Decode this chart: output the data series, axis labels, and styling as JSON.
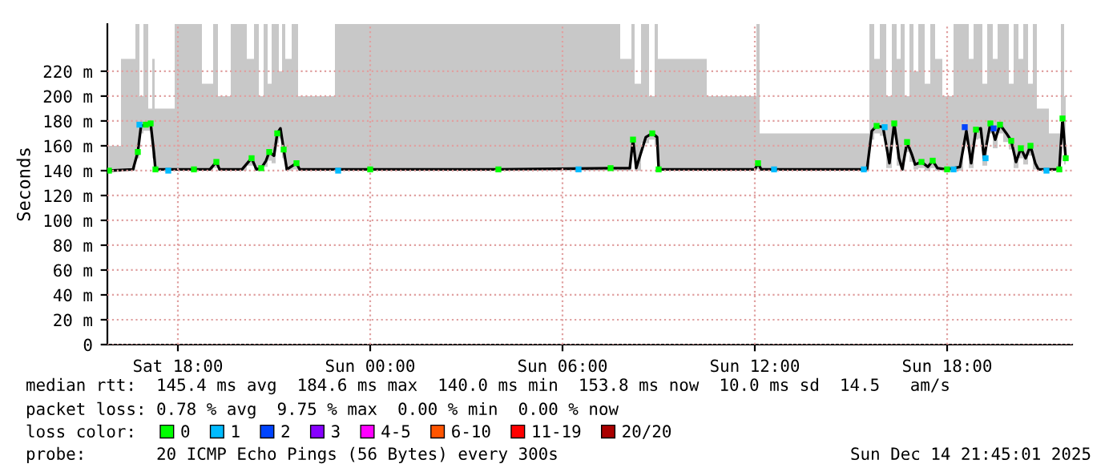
{
  "chart_data": {
    "type": "line",
    "ylabel": "Seconds",
    "xlim": [
      "2025-12-13T15:48",
      "2025-12-14T21:54"
    ],
    "xticks": [
      {
        "value": "2025-12-13T18:00",
        "label": "Sat 18:00"
      },
      {
        "value": "2025-12-14T00:00",
        "label": "Sun 00:00"
      },
      {
        "value": "2025-12-14T06:00",
        "label": "Sun 06:00"
      },
      {
        "value": "2025-12-14T12:00",
        "label": "Sun 12:00"
      },
      {
        "value": "2025-12-14T18:00",
        "label": "Sun 18:00"
      }
    ],
    "ylim": [
      0,
      258
    ],
    "yticks": [
      0,
      {
        "value": 20,
        "label": "20 m"
      },
      {
        "value": 40,
        "label": "40 m"
      },
      {
        "value": 60,
        "label": "60 m"
      },
      {
        "value": 80,
        "label": "80 m"
      },
      {
        "value": 100,
        "label": "100 m"
      },
      {
        "value": 120,
        "label": "120 m"
      },
      {
        "value": 140,
        "label": "140 m"
      },
      {
        "value": 160,
        "label": "160 m"
      },
      {
        "value": 180,
        "label": "180 m"
      },
      {
        "value": 200,
        "label": "200 m"
      },
      {
        "value": 220,
        "label": "220 m"
      }
    ],
    "grid": true,
    "legend": "bottom",
    "series": [
      {
        "color": "#000000",
        "x": [
          "2025-12-13T15:51",
          "2025-12-13T16:36",
          "2025-12-13T16:45",
          "2025-12-13T16:51",
          "2025-12-13T17:00",
          "2025-12-13T17:09",
          "2025-12-13T17:15",
          "2025-12-13T17:18",
          "2025-12-13T18:30",
          "2025-12-13T19:00",
          "2025-12-13T19:12",
          "2025-12-13T19:18",
          "2025-12-13T20:00",
          "2025-12-13T20:18",
          "2025-12-13T20:27",
          "2025-12-13T20:36",
          "2025-12-13T20:45",
          "2025-12-13T20:51",
          "2025-12-13T21:00",
          "2025-12-13T21:06",
          "2025-12-13T21:12",
          "2025-12-13T21:18",
          "2025-12-13T21:24",
          "2025-12-13T21:42",
          "2025-12-13T21:48",
          "2025-12-14T00:00",
          "2025-12-14T04:00",
          "2025-12-14T07:30",
          "2025-12-14T08:06",
          "2025-12-14T08:12",
          "2025-12-14T08:18",
          "2025-12-14T08:36",
          "2025-12-14T08:48",
          "2025-12-14T08:57",
          "2025-12-14T09:00",
          "2025-12-14T12:00",
          "2025-12-14T12:06",
          "2025-12-14T12:12",
          "2025-12-14T15:30",
          "2025-12-14T15:39",
          "2025-12-14T15:48",
          "2025-12-14T16:00",
          "2025-12-14T16:12",
          "2025-12-14T16:21",
          "2025-12-14T16:30",
          "2025-12-14T16:36",
          "2025-12-14T16:45",
          "2025-12-14T16:54",
          "2025-12-14T17:00",
          "2025-12-14T17:12",
          "2025-12-14T17:24",
          "2025-12-14T17:33",
          "2025-12-14T17:42",
          "2025-12-14T18:00",
          "2025-12-14T18:24",
          "2025-12-14T18:36",
          "2025-12-14T18:45",
          "2025-12-14T18:54",
          "2025-12-14T19:03",
          "2025-12-14T19:09",
          "2025-12-14T19:21",
          "2025-12-14T19:30",
          "2025-12-14T19:39",
          "2025-12-14T19:51",
          "2025-12-14T20:00",
          "2025-12-14T20:09",
          "2025-12-14T20:18",
          "2025-12-14T20:27",
          "2025-12-14T20:36",
          "2025-12-14T20:45",
          "2025-12-14T20:51",
          "2025-12-14T21:30",
          "2025-12-14T21:36",
          "2025-12-14T21:42"
        ],
        "values": [
          140,
          141,
          155,
          176,
          177,
          178,
          155,
          141,
          141,
          141,
          147,
          141,
          141,
          150,
          141,
          142,
          148,
          155,
          152,
          170,
          174,
          157,
          141,
          146,
          141,
          141,
          141,
          142,
          142,
          165,
          142,
          167,
          170,
          167,
          141,
          141,
          146,
          141,
          141,
          172,
          176,
          175,
          146,
          178,
          150,
          141,
          163,
          153,
          145,
          147,
          143,
          148,
          142,
          141,
          143,
          172,
          146,
          173,
          174,
          150,
          178,
          165,
          177,
          170,
          164,
          147,
          158,
          150,
          160,
          146,
          141,
          141,
          182,
          150
        ],
        "lower": [
          139,
          140,
          150,
          170,
          172,
          172,
          150,
          140,
          140,
          140,
          142,
          140,
          140,
          144,
          140,
          140,
          143,
          148,
          146,
          162,
          166,
          150,
          140,
          141,
          140,
          140,
          140,
          140,
          140,
          158,
          140,
          162,
          165,
          160,
          140,
          140,
          141,
          140,
          140,
          165,
          170,
          168,
          142,
          170,
          144,
          140,
          155,
          147,
          141,
          142,
          140,
          142,
          140,
          140,
          140,
          164,
          142,
          165,
          166,
          144,
          170,
          158,
          170,
          163,
          157,
          142,
          150,
          145,
          152,
          141,
          140,
          140,
          175,
          145
        ],
        "upper": [
          160,
          230,
          258,
          200,
          258,
          190,
          230,
          190,
          258,
          210,
          258,
          200,
          258,
          230,
          258,
          200,
          258,
          210,
          258,
          258,
          220,
          258,
          230,
          258,
          200,
          258,
          258,
          258,
          230,
          258,
          210,
          258,
          200,
          258,
          230,
          200,
          258,
          170,
          170,
          258,
          230,
          258,
          200,
          258,
          230,
          258,
          200,
          258,
          220,
          258,
          210,
          258,
          230,
          200,
          258,
          258,
          230,
          258,
          258,
          210,
          258,
          230,
          258,
          258,
          210,
          258,
          230,
          258,
          210,
          258,
          190,
          170,
          258,
          200
        ]
      },
      {
        "type": "scatter",
        "name": "0",
        "color": "#00ff00",
        "x": [
          "2025-12-13T15:51",
          "2025-12-13T16:45",
          "2025-12-13T17:00",
          "2025-12-13T17:09",
          "2025-12-13T17:18",
          "2025-12-13T18:30",
          "2025-12-13T19:12",
          "2025-12-13T20:18",
          "2025-12-13T20:36",
          "2025-12-13T20:51",
          "2025-12-13T21:06",
          "2025-12-13T21:18",
          "2025-12-13T21:42",
          "2025-12-14T00:00",
          "2025-12-14T04:00",
          "2025-12-14T07:30",
          "2025-12-14T08:12",
          "2025-12-14T08:48",
          "2025-12-14T09:00",
          "2025-12-14T12:06",
          "2025-12-14T15:48",
          "2025-12-14T16:21",
          "2025-12-14T16:45",
          "2025-12-14T17:12",
          "2025-12-14T17:33",
          "2025-12-14T18:00",
          "2025-12-14T18:54",
          "2025-12-14T19:21",
          "2025-12-14T19:39",
          "2025-12-14T20:00",
          "2025-12-14T20:18",
          "2025-12-14T20:36",
          "2025-12-14T21:30",
          "2025-12-14T21:36",
          "2025-12-14T21:42"
        ],
        "values": [
          140,
          155,
          177,
          178,
          141,
          141,
          147,
          150,
          142,
          155,
          170,
          157,
          146,
          141,
          141,
          142,
          165,
          170,
          141,
          146,
          176,
          178,
          163,
          147,
          148,
          141,
          173,
          178,
          177,
          164,
          158,
          160,
          141,
          182,
          150
        ]
      },
      {
        "type": "scatter",
        "name": "1",
        "color": "#00bbff",
        "x": [
          "2025-12-13T16:48",
          "2025-12-13T17:42",
          "2025-12-13T23:00",
          "2025-12-14T06:30",
          "2025-12-14T12:36",
          "2025-12-14T15:24",
          "2025-12-14T16:03",
          "2025-12-14T18:12",
          "2025-12-14T19:12",
          "2025-12-14T21:06"
        ],
        "values": [
          177,
          140,
          140,
          141,
          141,
          141,
          175,
          141,
          150,
          140
        ]
      },
      {
        "type": "scatter",
        "name": "2",
        "color": "#0044ff",
        "x": [
          "2025-12-14T18:33",
          "2025-12-14T19:27"
        ],
        "values": [
          175,
          174
        ]
      },
      {
        "type": "scatter",
        "name": "3",
        "color": "#8800ff"
      },
      {
        "type": "scatter",
        "name": "4-5",
        "color": "#ff00ff"
      },
      {
        "type": "scatter",
        "name": "6-10",
        "color": "#ff5500"
      },
      {
        "type": "scatter",
        "name": "11-19",
        "color": "#ff0000"
      },
      {
        "type": "scatter",
        "name": "20/20",
        "color": "#aa0000"
      }
    ],
    "annotations": [
      "median rtt:  145.4 ms avg  184.6 ms max  140.0 ms min  153.8 ms now  10.0 ms sd  14.5   am/s",
      "packet loss: 0.78 % avg  9.75 % max  0.00 % min  0.00 % now",
      "loss color:",
      "probe:       20 ICMP Echo Pings (56 Bytes) every 300s",
      "Sun Dec 14 21:45:01 2025"
    ]
  }
}
